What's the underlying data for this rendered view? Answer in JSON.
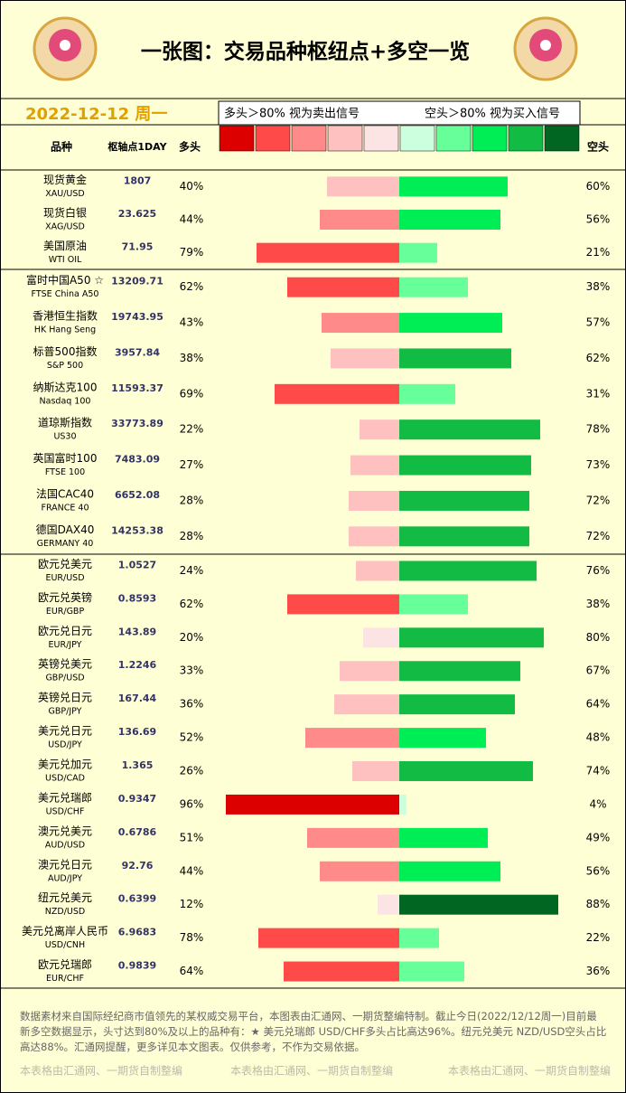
{
  "title": "一张图：交易品种枢纽点+多空一览",
  "date": "2022-12-12 周一",
  "legend": {
    "long_note": "多头＞80% 视为卖出信号",
    "short_note": "空头＞80% 视为买入信号"
  },
  "long_colors": [
    "#fde4e4",
    "#ffc0c0",
    "#ff8a8a",
    "#ff4a4a",
    "#dd0000"
  ],
  "short_colors": [
    "#ccffdd",
    "#66ff99",
    "#00ee55",
    "#11bb44",
    "#006622"
  ],
  "header": {
    "name": "品种",
    "pivot": "枢轴点1DAY",
    "long": "多头",
    "short": "空头"
  },
  "groups": [
    {
      "rows": [
        {
          "name": "现货黄金",
          "code": "XAU/USD",
          "pivot": "1807",
          "long": 40,
          "long_label": "40%",
          "short": 60,
          "short_label": "60%"
        },
        {
          "name": "现货白银",
          "code": "XAG/USD",
          "pivot": "23.625",
          "long": 44,
          "long_label": "44%",
          "short": 56,
          "short_label": "56%"
        },
        {
          "name": "美国原油",
          "code": "WTI OIL",
          "pivot": "71.95",
          "long": 79,
          "long_label": "79%",
          "short": 21,
          "short_label": "21%"
        }
      ]
    },
    {
      "rows": [
        {
          "name": "富时中国A50 ☆",
          "code": "FTSE China A50",
          "pivot": "13209.71",
          "long": 62,
          "long_label": "62%",
          "short": 38,
          "short_label": "38%"
        },
        {
          "name": "香港恒生指数",
          "code": "HK Hang Seng",
          "pivot": "19743.95",
          "long": 43,
          "long_label": "43%",
          "short": 57,
          "short_label": "57%"
        },
        {
          "name": "标普500指数",
          "code": "S&P 500",
          "pivot": "3957.84",
          "long": 38,
          "long_label": "38%",
          "short": 62,
          "short_label": "62%"
        },
        {
          "name": "纳斯达克100",
          "code": "Nasdaq 100",
          "pivot": "11593.37",
          "long": 69,
          "long_label": "69%",
          "short": 31,
          "short_label": "31%"
        },
        {
          "name": "道琼斯指数",
          "code": "US30",
          "pivot": "33773.89",
          "long": 22,
          "long_label": "22%",
          "short": 78,
          "short_label": "78%"
        },
        {
          "name": "英国富时100",
          "code": "FTSE 100",
          "pivot": "7483.09",
          "long": 27,
          "long_label": "27%",
          "short": 73,
          "short_label": "73%"
        },
        {
          "name": "法国CAC40",
          "code": "FRANCE 40",
          "pivot": "6652.08",
          "long": 28,
          "long_label": "28%",
          "short": 72,
          "short_label": "72%"
        },
        {
          "name": "德国DAX40",
          "code": "GERMANY 40",
          "pivot": "14253.38",
          "long": 28,
          "long_label": "28%",
          "short": 72,
          "short_label": "72%"
        }
      ]
    },
    {
      "rows": [
        {
          "name": "欧元兑美元",
          "code": "EUR/USD",
          "pivot": "1.0527",
          "long": 24,
          "long_label": "24%",
          "short": 76,
          "short_label": "76%"
        },
        {
          "name": "欧元兑英镑",
          "code": "EUR/GBP",
          "pivot": "0.8593",
          "long": 62,
          "long_label": "62%",
          "short": 38,
          "short_label": "38%"
        },
        {
          "name": "欧元兑日元",
          "code": "EUR/JPY",
          "pivot": "143.89",
          "long": 20,
          "long_label": "20%",
          "short": 80,
          "short_label": "80%"
        },
        {
          "name": "英镑兑美元",
          "code": "GBP/USD",
          "pivot": "1.2246",
          "long": 33,
          "long_label": "33%",
          "short": 67,
          "short_label": "67%"
        },
        {
          "name": "英镑兑日元",
          "code": "GBP/JPY",
          "pivot": "167.44",
          "long": 36,
          "long_label": "36%",
          "short": 64,
          "short_label": "64%"
        },
        {
          "name": "美元兑日元",
          "code": "USD/JPY",
          "pivot": "136.69",
          "long": 52,
          "long_label": "52%",
          "short": 48,
          "short_label": "48%"
        },
        {
          "name": "美元兑加元",
          "code": "USD/CAD",
          "pivot": "1.365",
          "long": 26,
          "long_label": "26%",
          "short": 74,
          "short_label": "74%"
        },
        {
          "name": "美元兑瑞郎",
          "code": "USD/CHF",
          "pivot": "0.9347",
          "long": 96,
          "long_label": "96%",
          "short": 4,
          "short_label": "4%"
        },
        {
          "name": "澳元兑美元",
          "code": "AUD/USD",
          "pivot": "0.6786",
          "long": 51,
          "long_label": "51%",
          "short": 49,
          "short_label": "49%"
        },
        {
          "name": "澳元兑日元",
          "code": "AUD/JPY",
          "pivot": "92.76",
          "long": 44,
          "long_label": "44%",
          "short": 56,
          "short_label": "56%"
        },
        {
          "name": "纽元兑美元",
          "code": "NZD/USD",
          "pivot": "0.6399",
          "long": 12,
          "long_label": "12%",
          "short": 88,
          "short_label": "88%"
        },
        {
          "name": "美元兑离岸人民币",
          "code": "USD/CNH",
          "pivot": "6.9683",
          "long": 78,
          "long_label": "78%",
          "short": 22,
          "short_label": "22%"
        },
        {
          "name": "欧元兑瑞郎",
          "code": "EUR/CHF",
          "pivot": "0.9839",
          "long": 64,
          "long_label": "64%",
          "short": 36,
          "short_label": "36%"
        }
      ]
    }
  ],
  "footer": "数据素材来自国际经纪商市值领先的某权威交易平台，本图表由汇通网、一期货整编特制。截止今日(2022/12/12周一)目前最新多空数据显示，头寸达到80%及以上的品种有：★ 美元兑瑞郎 USD/CHF多头占比高达96%。纽元兑美元 NZD/USD空头占比高达88%。汇通网提醒，更多详见本文图表。仅供参考，不作为交易依据。",
  "watermark": "本表格由汇通网、一期货自制整编"
}
